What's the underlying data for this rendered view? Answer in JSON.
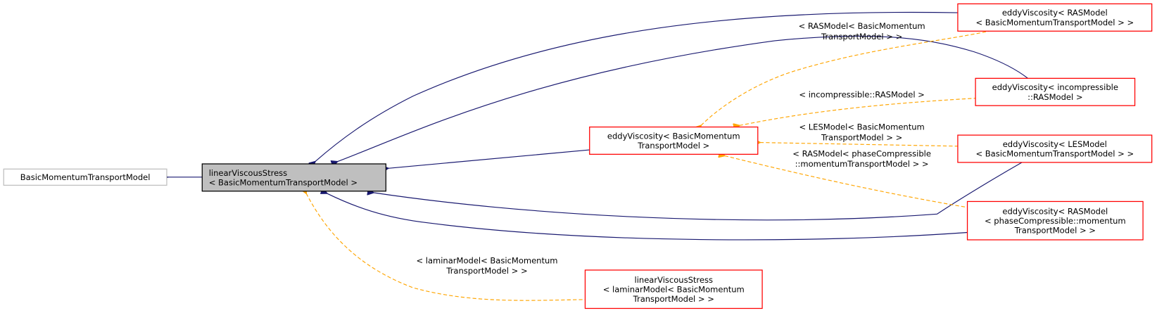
{
  "nodes": [
    {
      "lines": [
        "BasicMomentumTransportModel"
      ]
    },
    {
      "lines": [
        "linearViscousStress",
        "< BasicMomentumTransportModel >"
      ]
    },
    {
      "lines": [
        "eddyViscosity< BasicMomentum",
        "TransportModel >"
      ]
    },
    {
      "lines": [
        "eddyViscosity< RASModel",
        "< BasicMomentumTransportModel > >"
      ]
    },
    {
      "lines": [
        "eddyViscosity< incompressible",
        "::RASModel >"
      ]
    },
    {
      "lines": [
        "eddyViscosity< LESModel",
        "< BasicMomentumTransportModel > >"
      ]
    },
    {
      "lines": [
        "eddyViscosity< RASModel",
        "< phaseCompressible::momentum",
        "TransportModel > >"
      ]
    },
    {
      "lines": [
        "linearViscousStress",
        "< laminarModel< BasicMomentum",
        "TransportModel > >"
      ]
    }
  ],
  "edge_labels": [
    {
      "lines": [
        "< RASModel< BasicMomentum",
        "TransportModel > >"
      ]
    },
    {
      "lines": [
        "< incompressible::RASModel >"
      ]
    },
    {
      "lines": [
        "< LESModel< BasicMomentum",
        "TransportModel > >"
      ]
    },
    {
      "lines": [
        "< RASModel< phaseCompressible",
        "::momentumTransportModel > >"
      ]
    },
    {
      "lines": [
        "< laminarModel< BasicMomentum",
        "TransportModel > >"
      ]
    }
  ]
}
